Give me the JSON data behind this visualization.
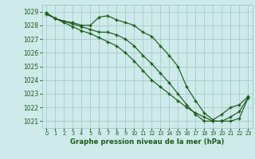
{
  "background_color": "#ceeaea",
  "grid_color": "#a8cccc",
  "line_color": "#1a5c1a",
  "xlabel": "Graphe pression niveau de la mer (hPa)",
  "xlim": [
    -0.5,
    23.5
  ],
  "ylim": [
    1020.5,
    1029.5
  ],
  "yticks": [
    1021,
    1022,
    1023,
    1024,
    1025,
    1026,
    1027,
    1028,
    1029
  ],
  "xticks": [
    0,
    1,
    2,
    3,
    4,
    5,
    6,
    7,
    8,
    9,
    10,
    11,
    12,
    13,
    14,
    15,
    16,
    17,
    18,
    19,
    20,
    21,
    22,
    23
  ],
  "series1_x": [
    0,
    1,
    2,
    3,
    4,
    5,
    6,
    7,
    8,
    9,
    10,
    11,
    12,
    13,
    14,
    15,
    16,
    17,
    18,
    19,
    20,
    21,
    22,
    23
  ],
  "series1_y": [
    1028.8,
    1028.5,
    1028.3,
    1028.2,
    1028.0,
    1028.0,
    1028.6,
    1028.7,
    1028.4,
    1028.2,
    1028.0,
    1027.5,
    1027.2,
    1026.5,
    1025.8,
    1025.0,
    1023.5,
    1022.5,
    1021.6,
    1021.1,
    1021.5,
    1022.0,
    1022.2,
    1022.8
  ],
  "series2_x": [
    0,
    1,
    2,
    3,
    4,
    5,
    6,
    7,
    8,
    9,
    10,
    11,
    12,
    13,
    14,
    15,
    16,
    17,
    18,
    19,
    20,
    21,
    22,
    23
  ],
  "series2_y": [
    1028.9,
    1028.5,
    1028.3,
    1028.1,
    1027.9,
    1027.7,
    1027.5,
    1027.5,
    1027.3,
    1027.0,
    1026.5,
    1025.8,
    1025.2,
    1024.5,
    1023.8,
    1023.0,
    1022.2,
    1021.5,
    1021.0,
    1021.0,
    1021.0,
    1021.3,
    1021.7,
    1022.7
  ],
  "series3_x": [
    0,
    1,
    2,
    3,
    4,
    5,
    6,
    7,
    8,
    9,
    10,
    11,
    12,
    13,
    14,
    15,
    16,
    17,
    18,
    19,
    20,
    21,
    22,
    23
  ],
  "series3_y": [
    1028.9,
    1028.5,
    1028.2,
    1027.9,
    1027.6,
    1027.4,
    1027.1,
    1026.8,
    1026.5,
    1026.0,
    1025.4,
    1024.7,
    1024.0,
    1023.5,
    1023.0,
    1022.5,
    1022.0,
    1021.6,
    1021.3,
    1021.0,
    1021.0,
    1021.0,
    1021.2,
    1022.7
  ]
}
